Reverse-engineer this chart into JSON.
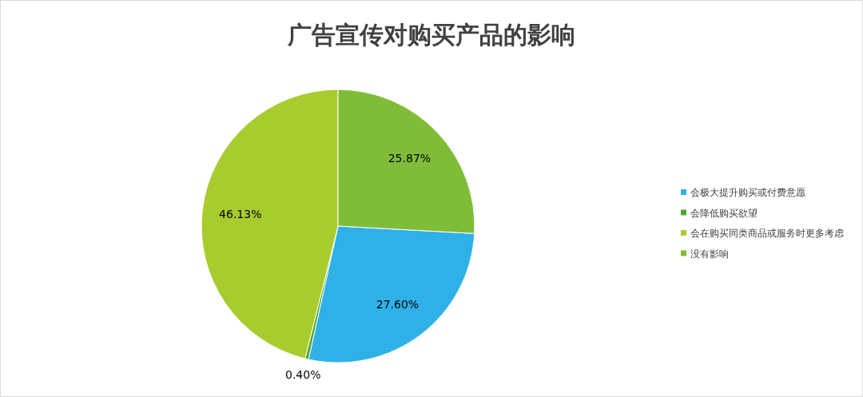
{
  "chart_data": {
    "type": "pie",
    "title": "广告宣传对购买产品的影响",
    "categories": [
      "会极大提升购买或付费意愿",
      "会降低购买欲望",
      "会在购买同类商品或服务时更多考虑",
      "没有影响"
    ],
    "values": [
      27.6,
      0.4,
      46.13,
      25.87
    ],
    "value_labels": [
      "27.60%",
      "0.40%",
      "46.13%",
      "25.87%"
    ],
    "colors": [
      "#2fb1e8",
      "#4fa52f",
      "#a8cc2e",
      "#7fbd38"
    ],
    "legend": "right"
  }
}
